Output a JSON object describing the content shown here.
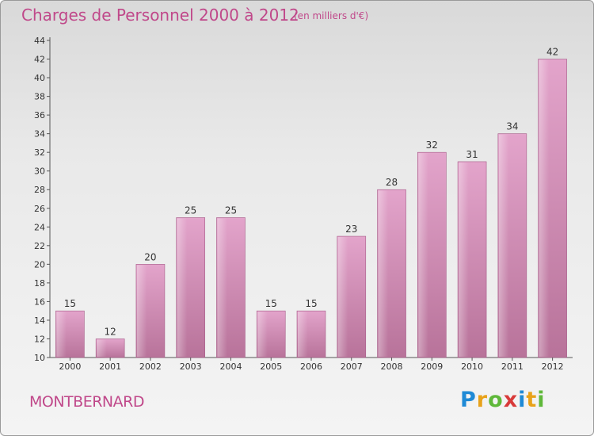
{
  "header": {
    "title": "Charges de Personnel 2000 à 2012",
    "subtitle": "(en milliers d'€)"
  },
  "footer": {
    "place": "MONTBERNARD",
    "logo_letters": [
      "P",
      "r",
      "o",
      "x",
      "i",
      "t",
      "i"
    ],
    "logo_colors": [
      "#1f8ad6",
      "#e8a21a",
      "#5fb83a",
      "#d83a3a",
      "#1f8ad6",
      "#e8a21a",
      "#5fb83a"
    ]
  },
  "colors": {
    "bar": "#d98fbb",
    "bar_dark": "#b86a96",
    "text": "#333333",
    "brand": "#c0488a"
  },
  "chart_data": {
    "type": "bar",
    "categories": [
      "2000",
      "2001",
      "2002",
      "2003",
      "2004",
      "2005",
      "2006",
      "2007",
      "2008",
      "2009",
      "2010",
      "2011",
      "2012"
    ],
    "values": [
      15,
      12,
      20,
      25,
      25,
      15,
      15,
      23,
      28,
      32,
      31,
      34,
      42
    ],
    "ylim": [
      10,
      44
    ],
    "yticks": [
      10,
      12,
      14,
      16,
      18,
      20,
      22,
      24,
      26,
      28,
      30,
      32,
      34,
      36,
      38,
      40,
      42,
      44
    ],
    "data_labels": true,
    "grid": false
  }
}
